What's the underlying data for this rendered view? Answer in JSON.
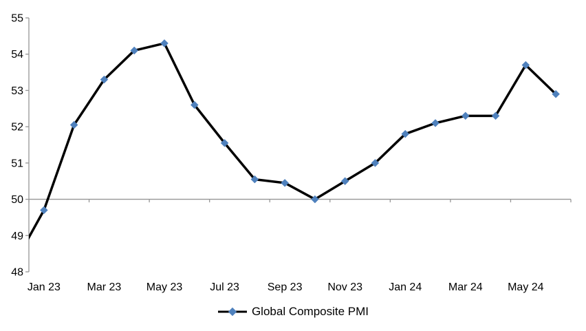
{
  "chart_data": {
    "type": "line",
    "title": "",
    "legend": [
      "Global Composite PMI"
    ],
    "legend_position": "bottom-center",
    "marker": "diamond",
    "categories": [
      "Dec 22",
      "Jan 23",
      "Feb 23",
      "Mar 23",
      "Apr 23",
      "May 23",
      "Jun 23",
      "Jul 23",
      "Aug 23",
      "Sep 23",
      "Oct 23",
      "Nov 23",
      "Dec 23",
      "Jan 24",
      "Feb 24",
      "Mar 24",
      "Apr 24",
      "May 24",
      "Jun 24"
    ],
    "series": [
      {
        "name": "Global Composite PMI",
        "values": [
          48.2,
          49.7,
          52.05,
          53.3,
          54.1,
          54.3,
          52.6,
          51.55,
          50.55,
          50.45,
          50.0,
          50.5,
          51.0,
          51.8,
          52.1,
          52.3,
          52.3,
          53.7,
          52.9
        ]
      }
    ],
    "first_category_clipped_at_axis": true,
    "x_tick_labels": [
      "Jan 23",
      "Mar 23",
      "May 23",
      "Jul 23",
      "Sep 23",
      "Nov 23",
      "Jan 24",
      "Mar 24",
      "May 24"
    ],
    "x_labels_start_index": 1,
    "x_labels_every": 2,
    "y_ticks": [
      55,
      54,
      53,
      52,
      51,
      50,
      49,
      48
    ],
    "ylim": [
      48,
      55
    ],
    "x_axis_cross_value": 50,
    "grid": false,
    "colors": {
      "line": "#000000",
      "marker": "#4F81BD",
      "axis": "#969696",
      "text": "#000000",
      "background": "#FFFFFF"
    }
  }
}
